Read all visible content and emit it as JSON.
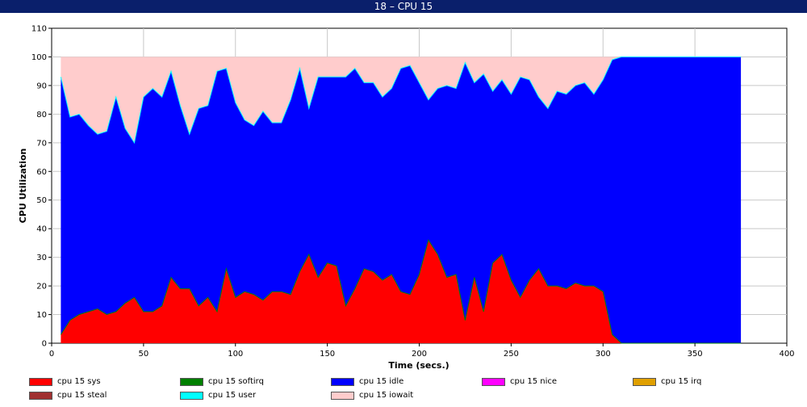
{
  "window": {
    "title": "18 – CPU 15"
  },
  "chart_data": {
    "type": "area",
    "stacked": true,
    "title": "18 – CPU 15",
    "xlabel": "Time (secs.)",
    "ylabel": "CPU Utilization",
    "xlim": [
      0,
      400
    ],
    "ylim": [
      0,
      110
    ],
    "x_ticks": [
      "0",
      "50",
      "100",
      "150",
      "200",
      "250",
      "300",
      "350",
      "400"
    ],
    "y_ticks": [
      "0",
      "10",
      "20",
      "30",
      "40",
      "50",
      "60",
      "70",
      "80",
      "90",
      "100",
      "110"
    ],
    "grid": true,
    "legend_position": "bottom",
    "x": [
      5,
      10,
      15,
      20,
      25,
      30,
      35,
      40,
      45,
      50,
      55,
      60,
      65,
      70,
      75,
      80,
      85,
      90,
      95,
      100,
      105,
      110,
      115,
      120,
      125,
      130,
      135,
      140,
      145,
      150,
      155,
      160,
      165,
      170,
      175,
      180,
      185,
      190,
      195,
      200,
      205,
      210,
      215,
      220,
      225,
      230,
      235,
      240,
      245,
      250,
      255,
      260,
      265,
      270,
      275,
      280,
      285,
      290,
      295,
      300,
      305,
      310,
      375
    ],
    "series": [
      {
        "name": "cpu 15 sys",
        "color": "#ff0000",
        "values": [
          3,
          8,
          10,
          11,
          12,
          10,
          11,
          14,
          16,
          11,
          11,
          13,
          23,
          19,
          19,
          13,
          16,
          11,
          26,
          16,
          18,
          17,
          15,
          18,
          18,
          17,
          25,
          31,
          23,
          28,
          27,
          13,
          19,
          26,
          25,
          22,
          24,
          18,
          17,
          24,
          36,
          31,
          23,
          24,
          8,
          23,
          11,
          28,
          31,
          22,
          16,
          22,
          26,
          20,
          20,
          19,
          21,
          20,
          20,
          18,
          3,
          0,
          0
        ]
      },
      {
        "name": "cpu 15 softirq",
        "color": "#008000",
        "values": [
          0,
          0,
          0,
          0,
          0,
          0,
          0,
          0,
          0,
          0,
          0,
          0,
          0,
          0,
          0,
          0,
          0,
          0,
          0,
          0,
          0,
          0,
          0,
          0,
          0,
          0,
          0,
          0,
          0,
          0,
          0,
          0,
          0,
          0,
          0,
          0,
          0,
          0,
          0,
          0,
          0,
          0,
          0,
          0,
          0,
          0,
          0,
          0,
          0,
          0,
          0,
          0,
          0,
          0,
          0,
          0,
          0,
          0,
          0,
          0,
          0,
          0,
          0
        ]
      },
      {
        "name": "cpu 15 idle",
        "color": "#0000ff",
        "values": [
          90,
          71,
          70,
          65,
          61,
          64,
          75,
          61,
          54,
          75,
          78,
          73,
          72,
          64,
          54,
          69,
          67,
          84,
          70,
          68,
          60,
          59,
          66,
          59,
          59,
          68,
          71,
          51,
          70,
          65,
          66,
          80,
          77,
          65,
          66,
          64,
          65,
          78,
          80,
          67,
          49,
          58,
          67,
          65,
          90,
          68,
          83,
          60,
          61,
          65,
          77,
          70,
          60,
          62,
          68,
          68,
          69,
          71,
          67,
          74,
          96,
          100,
          100
        ]
      },
      {
        "name": "cpu 15 nice",
        "color": "#ff00ff",
        "values": [
          0,
          0,
          0,
          0,
          0,
          0,
          0,
          0,
          0,
          0,
          0,
          0,
          0,
          0,
          0,
          0,
          0,
          0,
          0,
          0,
          0,
          0,
          0,
          0,
          0,
          0,
          0,
          0,
          0,
          0,
          0,
          0,
          0,
          0,
          0,
          0,
          0,
          0,
          0,
          0,
          0,
          0,
          0,
          0,
          0,
          0,
          0,
          0,
          0,
          0,
          0,
          0,
          0,
          0,
          0,
          0,
          0,
          0,
          0,
          0,
          0,
          0,
          0
        ]
      },
      {
        "name": "cpu 15 irq",
        "color": "#e0a000",
        "values": [
          0,
          0,
          0,
          0,
          0,
          0,
          0,
          0,
          0,
          0,
          0,
          0,
          0,
          0,
          0,
          0,
          0,
          0,
          0,
          0,
          0,
          0,
          0,
          0,
          0,
          0,
          0,
          0,
          0,
          0,
          0,
          0,
          0,
          0,
          0,
          0,
          0,
          0,
          0,
          0,
          0,
          0,
          0,
          0,
          0,
          0,
          0,
          0,
          0,
          0,
          0,
          0,
          0,
          0,
          0,
          0,
          0,
          0,
          0,
          0,
          0,
          0,
          0
        ]
      },
      {
        "name": "cpu 15 steal",
        "color": "#a03030",
        "values": [
          0,
          0,
          0,
          0,
          0,
          0,
          0,
          0,
          0,
          0,
          0,
          0,
          0,
          0,
          0,
          0,
          0,
          0,
          0,
          0,
          0,
          0,
          0,
          0,
          0,
          0,
          0,
          0,
          0,
          0,
          0,
          0,
          0,
          0,
          0,
          0,
          0,
          0,
          0,
          0,
          0,
          0,
          0,
          0,
          0,
          0,
          0,
          0,
          0,
          0,
          0,
          0,
          0,
          0,
          0,
          0,
          0,
          0,
          0,
          0,
          0,
          0,
          0
        ]
      },
      {
        "name": "cpu 15 user",
        "color": "#00ffff",
        "values": [
          0,
          0,
          0,
          0,
          0,
          0,
          0,
          0,
          0,
          0,
          0,
          0,
          0,
          0,
          0,
          0,
          0,
          0,
          0,
          0,
          0,
          0,
          0,
          0,
          0,
          0,
          0,
          0,
          0,
          0,
          0,
          0,
          0,
          0,
          0,
          0,
          0,
          0,
          0,
          0,
          0,
          0,
          0,
          0,
          0,
          0,
          0,
          0,
          0,
          0,
          0,
          0,
          0,
          0,
          0,
          0,
          0,
          0,
          0,
          0,
          0,
          0,
          0
        ]
      },
      {
        "name": "cpu 15 iowait",
        "color": "#ffcccc",
        "values": [
          7,
          21,
          20,
          24,
          27,
          26,
          14,
          25,
          30,
          14,
          11,
          14,
          5,
          17,
          27,
          18,
          17,
          5,
          4,
          16,
          22,
          24,
          19,
          23,
          23,
          15,
          4,
          18,
          7,
          7,
          7,
          7,
          4,
          9,
          9,
          14,
          11,
          4,
          3,
          9,
          15,
          11,
          10,
          11,
          2,
          9,
          6,
          12,
          8,
          13,
          7,
          8,
          14,
          18,
          12,
          13,
          10,
          9,
          13,
          8,
          1,
          0,
          0
        ]
      }
    ]
  }
}
